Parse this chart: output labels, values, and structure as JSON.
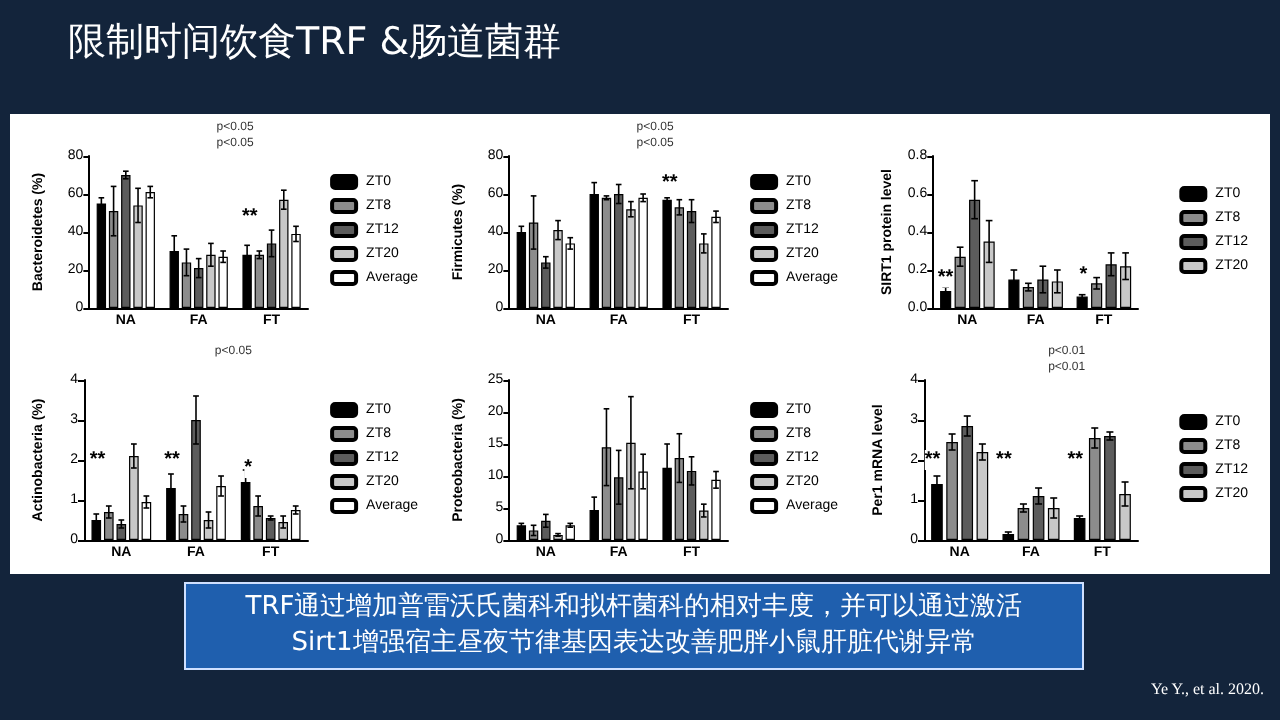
{
  "chart_data": [
    {
      "type": "other",
      "title": "限制时间饮食TRF &肠道菌群",
      "annotations": [
        "TRF通过增加普雷沃氏菌科和拟杆菌科的相对丰度，并可以通过激活",
        "Sirt1增强宿主昼夜节律基因表达改善肥胖小鼠肝脏代谢异常",
        "Ye Y., et al. 2020."
      ]
    },
    {
      "type": "bar",
      "ylabel": "Bacteroidetes (%)",
      "categories": [
        "NA",
        "FA",
        "FT"
      ],
      "ylim": [
        0,
        80
      ],
      "yticks": [
        0,
        20,
        40,
        60,
        80
      ],
      "legend": "right",
      "annotations": [
        "p<0.05",
        "p<0.05",
        "**"
      ],
      "series": [
        {
          "name": "ZT0",
          "color": "#000000",
          "values": [
            55,
            30,
            28
          ],
          "errors": [
            3,
            8,
            5
          ]
        },
        {
          "name": "ZT8",
          "color": "#8c8c8c",
          "values": [
            51,
            24,
            28
          ],
          "errors": [
            13,
            7,
            2
          ]
        },
        {
          "name": "ZT12",
          "color": "#5c5c5c",
          "values": [
            70,
            21,
            34
          ],
          "errors": [
            2,
            5,
            7
          ]
        },
        {
          "name": "ZT20",
          "color": "#c8c8c8",
          "values": [
            54,
            28,
            57
          ],
          "errors": [
            9,
            6,
            5
          ]
        },
        {
          "name": "Average",
          "color": "#ffffff",
          "values": [
            61,
            27,
            39
          ],
          "errors": [
            3,
            3,
            4
          ]
        }
      ]
    },
    {
      "type": "bar",
      "ylabel": "Firmicutes (%)",
      "categories": [
        "NA",
        "FA",
        "FT"
      ],
      "ylim": [
        0,
        80
      ],
      "yticks": [
        0,
        20,
        40,
        60,
        80
      ],
      "legend": "right",
      "annotations": [
        "p<0.05",
        "p<0.05",
        "**"
      ],
      "series": [
        {
          "name": "ZT0",
          "color": "#000000",
          "values": [
            40,
            60,
            57
          ],
          "errors": [
            3,
            6,
            1
          ]
        },
        {
          "name": "ZT8",
          "color": "#8c8c8c",
          "values": [
            45,
            58,
            53
          ],
          "errors": [
            14,
            1,
            4
          ]
        },
        {
          "name": "ZT12",
          "color": "#5c5c5c",
          "values": [
            24,
            60,
            51
          ],
          "errors": [
            3,
            5,
            6
          ]
        },
        {
          "name": "ZT20",
          "color": "#c8c8c8",
          "values": [
            41,
            52,
            34
          ],
          "errors": [
            5,
            4,
            5
          ]
        },
        {
          "name": "Average",
          "color": "#ffffff",
          "values": [
            34,
            58,
            48
          ],
          "errors": [
            3,
            2,
            3
          ]
        }
      ]
    },
    {
      "type": "bar",
      "ylabel": "SIRT1 protein level",
      "categories": [
        "NA",
        "FA",
        "FT"
      ],
      "ylim": [
        0,
        0.8
      ],
      "yticks": [
        {
          "value": 0,
          "label": "0.0"
        },
        0.2,
        0.4,
        0.6,
        0.8
      ],
      "legend": "right",
      "annotations": [
        "**",
        "*"
      ],
      "series": [
        {
          "name": "ZT0",
          "color": "#000000",
          "values": [
            0.09,
            0.15,
            0.06
          ],
          "errors": [
            0.02,
            0.05,
            0.01
          ]
        },
        {
          "name": "ZT8",
          "color": "#8c8c8c",
          "values": [
            0.27,
            0.11,
            0.13
          ],
          "errors": [
            0.05,
            0.02,
            0.03
          ]
        },
        {
          "name": "ZT12",
          "color": "#5c5c5c",
          "values": [
            0.57,
            0.15,
            0.23
          ],
          "errors": [
            0.1,
            0.07,
            0.06
          ]
        },
        {
          "name": "ZT20",
          "color": "#c8c8c8",
          "values": [
            0.35,
            0.14,
            0.22
          ],
          "errors": [
            0.11,
            0.06,
            0.07
          ]
        }
      ]
    },
    {
      "type": "bar",
      "ylabel": "Actinobacteria (%)",
      "categories": [
        "NA",
        "FA",
        "FT"
      ],
      "ylim": [
        0,
        4
      ],
      "yticks": [
        0,
        1,
        2,
        3,
        4
      ],
      "legend": "right",
      "annotations": [
        "p<0.05",
        "**",
        "**",
        "*"
      ],
      "series": [
        {
          "name": "ZT0",
          "color": "#000000",
          "values": [
            0.5,
            1.3,
            1.45
          ],
          "errors": [
            0.15,
            0.35,
            0.3
          ]
        },
        {
          "name": "ZT8",
          "color": "#8c8c8c",
          "values": [
            0.7,
            0.65,
            0.85
          ],
          "errors": [
            0.15,
            0.2,
            0.25
          ]
        },
        {
          "name": "ZT12",
          "color": "#5c5c5c",
          "values": [
            0.4,
            3.0,
            0.55
          ],
          "errors": [
            0.1,
            0.6,
            0.05
          ]
        },
        {
          "name": "ZT20",
          "color": "#c8c8c8",
          "values": [
            2.1,
            0.5,
            0.45
          ],
          "errors": [
            0.3,
            0.2,
            0.15
          ]
        },
        {
          "name": "Average",
          "color": "#ffffff",
          "values": [
            0.95,
            1.35,
            0.75
          ],
          "errors": [
            0.15,
            0.25,
            0.1
          ]
        }
      ]
    },
    {
      "type": "bar",
      "ylabel": "Proteobacteria (%)",
      "categories": [
        "NA",
        "FA",
        "FT"
      ],
      "ylim": [
        0,
        25
      ],
      "yticks": [
        0,
        5,
        10,
        15,
        20,
        25
      ],
      "legend": "right",
      "series": [
        {
          "name": "ZT0",
          "color": "#000000",
          "values": [
            2.3,
            4.7,
            11.3
          ],
          "errors": [
            0.3,
            2,
            3.7
          ]
        },
        {
          "name": "ZT8",
          "color": "#8c8c8c",
          "values": [
            1.5,
            14.5,
            12.8
          ],
          "errors": [
            0.8,
            6,
            3.8
          ]
        },
        {
          "name": "ZT12",
          "color": "#5c5c5c",
          "values": [
            3,
            9.8,
            10.8
          ],
          "errors": [
            1,
            4.2,
            2.2
          ]
        },
        {
          "name": "ZT20",
          "color": "#c8c8c8",
          "values": [
            0.8,
            15.2,
            4.6
          ],
          "errors": [
            0.2,
            7.2,
            1
          ]
        },
        {
          "name": "Average",
          "color": "#ffffff",
          "values": [
            2.3,
            10.7,
            9.4
          ],
          "errors": [
            0.3,
            2.7,
            1.3
          ]
        }
      ]
    },
    {
      "type": "bar",
      "ylabel": "Per1 mRNA level",
      "categories": [
        "NA",
        "FA",
        "FT"
      ],
      "ylim": [
        0,
        4
      ],
      "yticks": [
        0,
        1,
        2,
        3,
        4
      ],
      "legend": "right",
      "annotations": [
        "p<0.01",
        "p<0.01",
        "**",
        "**",
        "**"
      ],
      "series": [
        {
          "name": "ZT0",
          "color": "#000000",
          "values": [
            1.4,
            0.15,
            0.55
          ],
          "errors": [
            0.2,
            0.05,
            0.05
          ]
        },
        {
          "name": "ZT8",
          "color": "#8c8c8c",
          "values": [
            2.45,
            0.8,
            2.55
          ],
          "errors": [
            0.2,
            0.1,
            0.25
          ]
        },
        {
          "name": "ZT12",
          "color": "#5c5c5c",
          "values": [
            2.85,
            1.1,
            2.6
          ],
          "errors": [
            0.25,
            0.2,
            0.1
          ]
        },
        {
          "name": "ZT20",
          "color": "#c8c8c8",
          "values": [
            2.2,
            0.8,
            1.15
          ],
          "errors": [
            0.2,
            0.25,
            0.3
          ]
        }
      ]
    }
  ]
}
